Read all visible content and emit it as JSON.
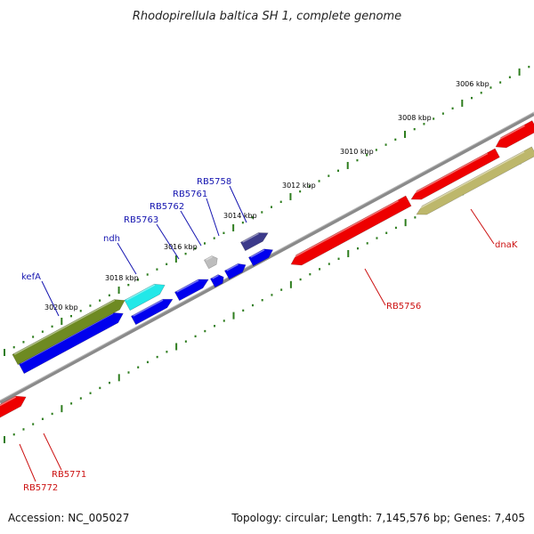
{
  "title": "Rhodopirellula baltica SH 1, complete genome",
  "footer": {
    "accession": "Accession: NC_005027",
    "summary": "Topology: circular; Length: 7,145,576 bp; Genes: 7,405"
  },
  "ruler_labels": [
    "3006 kbp",
    "3008 kbp",
    "3010 kbp",
    "3012 kbp",
    "3014 kbp",
    "3016 kbp",
    "3018 kbp",
    "3020 kbp"
  ],
  "gene_labels": {
    "forward": [
      "kefA",
      "ndh",
      "RB5763",
      "RB5762",
      "RB5761",
      "RB5758"
    ],
    "reverse": [
      "RB5756",
      "dnaK",
      "RB5771",
      "RB5772"
    ]
  },
  "colors": {
    "forward_label": "#1515b0",
    "reverse_label": "#cc1111",
    "backbone": "#808080",
    "ruler": "#2e7d1e",
    "blue": "#0000ee",
    "red": "#ee0000",
    "olive": "#6e8a22",
    "cyan": "#22e8e8",
    "gray": "#bdbdbd",
    "navy": "#3c3a8a",
    "khaki": "#bdb76b"
  }
}
